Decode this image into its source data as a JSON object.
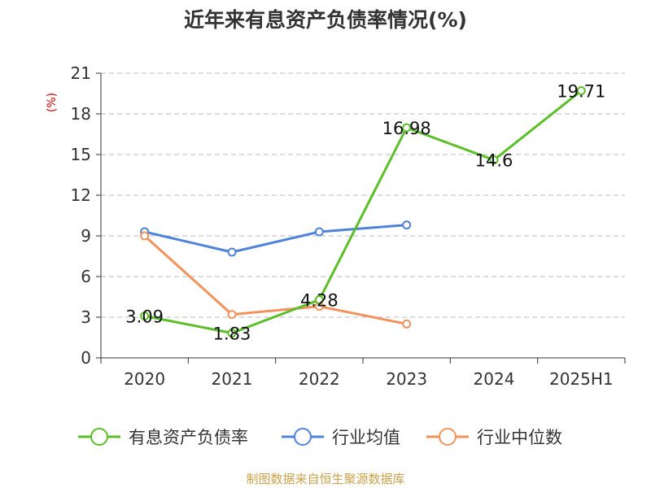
{
  "chart_data": {
    "type": "line",
    "title": "近年来有息资产负债率情况(%)",
    "ylabel": "(%)",
    "categories": [
      "2020",
      "2021",
      "2022",
      "2023",
      "2024",
      "2025H1"
    ],
    "ylim": [
      0,
      21
    ],
    "yticks": [
      0,
      3,
      6,
      9,
      12,
      15,
      18,
      21
    ],
    "grid": true,
    "legend_position": "bottom",
    "series": [
      {
        "name": "有息资产负债率",
        "color": "#5cbf2a",
        "labeled": true,
        "values": [
          3.09,
          1.83,
          4.28,
          16.98,
          14.6,
          19.71
        ],
        "labels": [
          "3.09",
          "1.83",
          "4.28",
          "16.98",
          "14.6",
          "19.71"
        ]
      },
      {
        "name": "行业均值",
        "color": "#4f82d9",
        "labeled": false,
        "values": [
          9.3,
          7.8,
          9.3,
          9.8,
          null,
          null
        ]
      },
      {
        "name": "行业中位数",
        "color": "#f4925c",
        "labeled": false,
        "values": [
          9.0,
          3.2,
          3.8,
          2.5,
          null,
          null
        ]
      }
    ],
    "source": "制图数据来自恒生聚源数据库"
  }
}
